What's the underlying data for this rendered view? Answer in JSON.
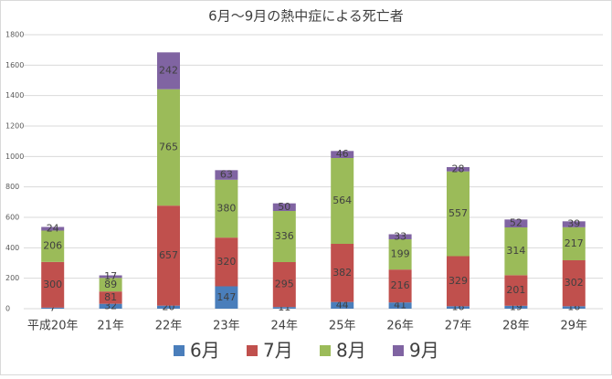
{
  "chart_data": {
    "type": "stacked_bar",
    "title": "6月～9月の熱中症による死亡者",
    "categories": [
      "平成20年",
      "21年",
      "22年",
      "23年",
      "24年",
      "25年",
      "26年",
      "27年",
      "28年",
      "29年"
    ],
    "series": [
      {
        "name": "6月",
        "color": "#4a7ebb",
        "values": [
          7,
          32,
          20,
          147,
          11,
          44,
          41,
          16,
          19,
          16
        ]
      },
      {
        "name": "7月",
        "color": "#c0504d",
        "values": [
          300,
          81,
          657,
          320,
          295,
          382,
          216,
          329,
          201,
          302
        ]
      },
      {
        "name": "8月",
        "color": "#9bbb59",
        "values": [
          206,
          89,
          765,
          380,
          336,
          564,
          199,
          557,
          314,
          217
        ]
      },
      {
        "name": "9月",
        "color": "#8064a2",
        "values": [
          24,
          17,
          242,
          63,
          50,
          46,
          33,
          28,
          52,
          39
        ]
      }
    ],
    "ylim": [
      0,
      1800
    ],
    "yticks": [
      0,
      200,
      400,
      600,
      800,
      1000,
      1200,
      1400,
      1600,
      1800
    ],
    "grid": true
  }
}
